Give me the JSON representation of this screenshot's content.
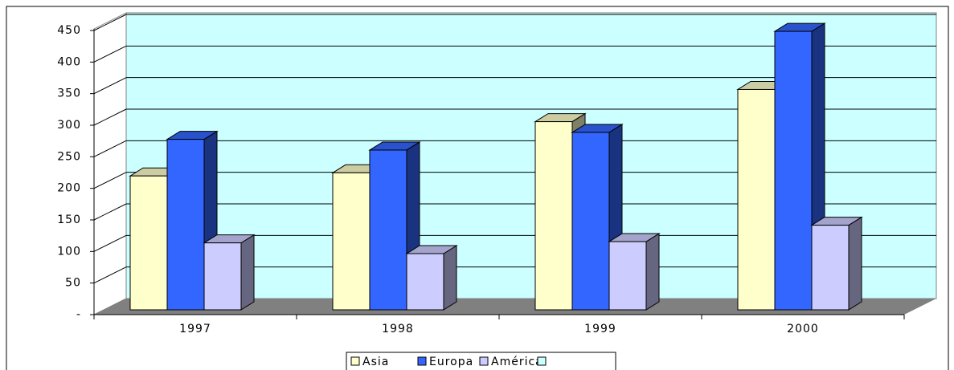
{
  "chart_data": {
    "type": "bar3d",
    "categories": [
      "1997",
      "1998",
      "1999",
      "2000"
    ],
    "series": [
      {
        "name": "Asia",
        "color": "#ffffcc",
        "values": [
          212,
          217,
          298,
          349
        ]
      },
      {
        "name": "Europa",
        "color": "#3366ff",
        "values": [
          270,
          253,
          281,
          441
        ]
      },
      {
        "name": "América",
        "color": "#ccccff",
        "values": [
          106,
          89,
          108,
          134
        ]
      }
    ],
    "ylim": [
      0,
      450
    ],
    "yticks": [
      {
        "value": 0,
        "label": "-"
      },
      50,
      100,
      150,
      200,
      250,
      300,
      350,
      400,
      450
    ],
    "grid": true,
    "wall_color": "#ccffff",
    "floor_color": "#808080",
    "legend": "bottom"
  }
}
